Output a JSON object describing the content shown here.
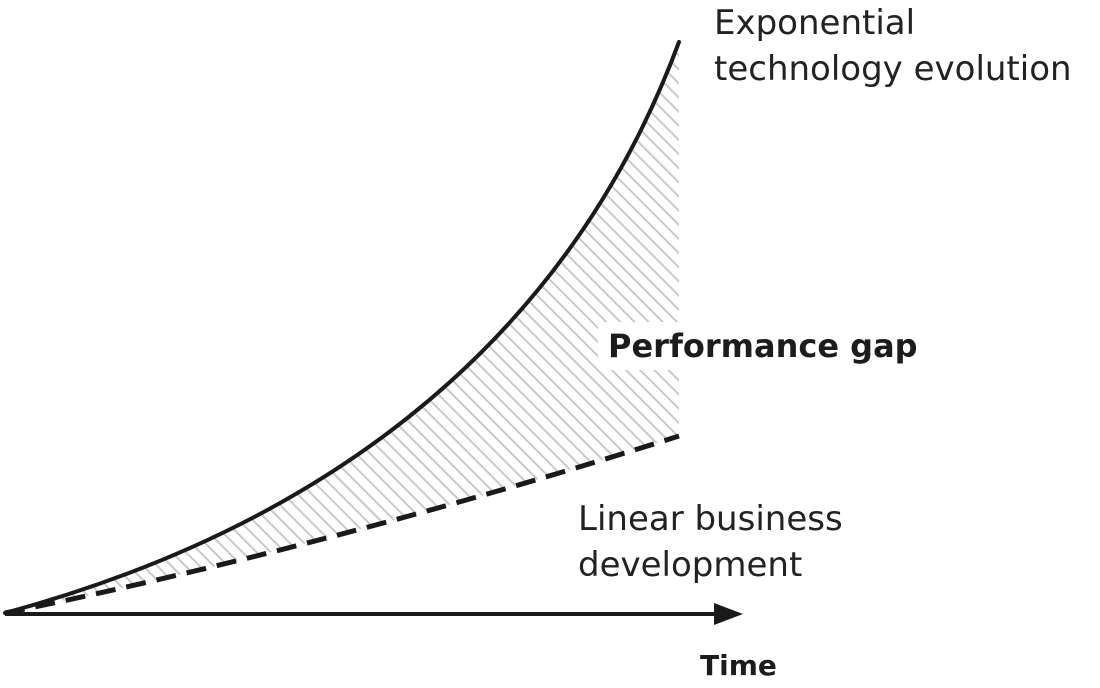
{
  "labels": {
    "exponential_line1": "Exponential",
    "exponential_line2": "technology evolution",
    "linear_line1": "Linear business",
    "linear_line2": "development",
    "gap": "Performance gap",
    "x_axis": "Time"
  },
  "colors": {
    "curve": "#1a1a1a",
    "hatch": "#c9c9c9",
    "axis": "#1a1a1a",
    "text": "#222222"
  }
}
